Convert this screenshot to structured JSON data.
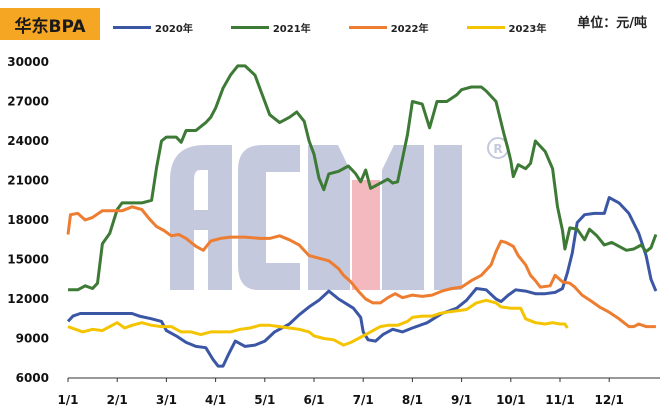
{
  "chart_data": {
    "type": "line",
    "title": "华东BPA",
    "unit": "单位：元/吨",
    "xlabel": "",
    "ylabel": "",
    "x_ticks": [
      "1/1",
      "2/1",
      "3/1",
      "4/1",
      "5/1",
      "6/1",
      "7/1",
      "8/1",
      "9/1",
      "10/1",
      "11/1",
      "12/1"
    ],
    "xlim": [
      1,
      12.95
    ],
    "ylim": [
      6000,
      30000
    ],
    "y_ticks": [
      6000,
      9000,
      12000,
      15000,
      18000,
      21000,
      24000,
      27000,
      30000
    ],
    "grid": false,
    "legend_position": "top",
    "series": [
      {
        "name": "2020年",
        "color": "#3a56a5",
        "points": [
          [
            1.0,
            10300
          ],
          [
            1.1,
            10700
          ],
          [
            1.25,
            10900
          ],
          [
            1.5,
            10900
          ],
          [
            1.8,
            10900
          ],
          [
            2.0,
            10900
          ],
          [
            2.3,
            10900
          ],
          [
            2.45,
            10700
          ],
          [
            2.7,
            10500
          ],
          [
            2.9,
            10300
          ],
          [
            3.0,
            9600
          ],
          [
            3.2,
            9200
          ],
          [
            3.4,
            8700
          ],
          [
            3.6,
            8400
          ],
          [
            3.8,
            8300
          ],
          [
            3.95,
            7400
          ],
          [
            4.05,
            6900
          ],
          [
            4.15,
            6900
          ],
          [
            4.25,
            7700
          ],
          [
            4.4,
            8800
          ],
          [
            4.6,
            8400
          ],
          [
            4.8,
            8500
          ],
          [
            5.0,
            8800
          ],
          [
            5.2,
            9500
          ],
          [
            5.5,
            10100
          ],
          [
            5.7,
            10800
          ],
          [
            5.9,
            11400
          ],
          [
            6.1,
            11900
          ],
          [
            6.3,
            12600
          ],
          [
            6.5,
            12000
          ],
          [
            6.8,
            11300
          ],
          [
            6.95,
            10600
          ],
          [
            7.0,
            9500
          ],
          [
            7.1,
            8900
          ],
          [
            7.25,
            8800
          ],
          [
            7.4,
            9300
          ],
          [
            7.6,
            9700
          ],
          [
            7.8,
            9500
          ],
          [
            8.0,
            9800
          ],
          [
            8.3,
            10200
          ],
          [
            8.6,
            10900
          ],
          [
            8.9,
            11300
          ],
          [
            9.1,
            11900
          ],
          [
            9.3,
            12800
          ],
          [
            9.5,
            12700
          ],
          [
            9.7,
            12000
          ],
          [
            9.8,
            11800
          ],
          [
            9.95,
            12300
          ],
          [
            10.1,
            12700
          ],
          [
            10.3,
            12600
          ],
          [
            10.5,
            12400
          ],
          [
            10.7,
            12400
          ],
          [
            10.9,
            12500
          ],
          [
            11.05,
            12800
          ],
          [
            11.15,
            14000
          ],
          [
            11.25,
            15500
          ],
          [
            11.35,
            17800
          ],
          [
            11.5,
            18400
          ],
          [
            11.7,
            18500
          ],
          [
            11.9,
            18500
          ],
          [
            12.0,
            19700
          ],
          [
            12.2,
            19300
          ],
          [
            12.4,
            18500
          ],
          [
            12.6,
            17000
          ],
          [
            12.75,
            15300
          ],
          [
            12.85,
            13500
          ],
          [
            12.95,
            12600
          ]
        ]
      },
      {
        "name": "2021年",
        "color": "#3d7a35",
        "points": [
          [
            1.0,
            12700
          ],
          [
            1.2,
            12700
          ],
          [
            1.35,
            13000
          ],
          [
            1.5,
            12800
          ],
          [
            1.6,
            13200
          ],
          [
            1.7,
            16200
          ],
          [
            1.85,
            17000
          ],
          [
            2.0,
            18800
          ],
          [
            2.1,
            19300
          ],
          [
            2.3,
            19300
          ],
          [
            2.5,
            19300
          ],
          [
            2.7,
            19500
          ],
          [
            2.8,
            22000
          ],
          [
            2.9,
            24000
          ],
          [
            3.0,
            24300
          ],
          [
            3.2,
            24300
          ],
          [
            3.3,
            23900
          ],
          [
            3.4,
            24800
          ],
          [
            3.6,
            24800
          ],
          [
            3.8,
            25400
          ],
          [
            3.9,
            25800
          ],
          [
            4.0,
            26500
          ],
          [
            4.15,
            28000
          ],
          [
            4.3,
            29000
          ],
          [
            4.45,
            29700
          ],
          [
            4.6,
            29700
          ],
          [
            4.8,
            29000
          ],
          [
            4.95,
            27500
          ],
          [
            5.1,
            26000
          ],
          [
            5.3,
            25400
          ],
          [
            5.5,
            25800
          ],
          [
            5.65,
            26200
          ],
          [
            5.8,
            25500
          ],
          [
            5.9,
            24000
          ],
          [
            6.0,
            23000
          ],
          [
            6.1,
            21200
          ],
          [
            6.2,
            20300
          ],
          [
            6.3,
            21500
          ],
          [
            6.5,
            21700
          ],
          [
            6.7,
            22100
          ],
          [
            6.85,
            21500
          ],
          [
            6.95,
            20900
          ],
          [
            7.05,
            21800
          ],
          [
            7.15,
            20400
          ],
          [
            7.3,
            20700
          ],
          [
            7.5,
            21100
          ],
          [
            7.6,
            20800
          ],
          [
            7.7,
            20900
          ],
          [
            7.8,
            22700
          ],
          [
            7.9,
            24500
          ],
          [
            8.0,
            27000
          ],
          [
            8.2,
            26800
          ],
          [
            8.35,
            25000
          ],
          [
            8.5,
            27000
          ],
          [
            8.7,
            27000
          ],
          [
            8.9,
            27500
          ],
          [
            9.0,
            27900
          ],
          [
            9.2,
            28100
          ],
          [
            9.4,
            28100
          ],
          [
            9.5,
            27800
          ],
          [
            9.7,
            27000
          ],
          [
            9.85,
            24700
          ],
          [
            9.95,
            23300
          ],
          [
            10.0,
            22500
          ],
          [
            10.05,
            21300
          ],
          [
            10.15,
            22200
          ],
          [
            10.3,
            21900
          ],
          [
            10.4,
            22300
          ],
          [
            10.5,
            24000
          ],
          [
            10.7,
            23200
          ],
          [
            10.85,
            21900
          ],
          [
            10.95,
            19000
          ],
          [
            11.05,
            17200
          ],
          [
            11.1,
            15800
          ],
          [
            11.2,
            17400
          ],
          [
            11.35,
            17300
          ],
          [
            11.5,
            16500
          ],
          [
            11.6,
            17300
          ],
          [
            11.75,
            16800
          ],
          [
            11.9,
            16100
          ],
          [
            12.05,
            16300
          ],
          [
            12.2,
            16000
          ],
          [
            12.35,
            15700
          ],
          [
            12.5,
            15800
          ],
          [
            12.65,
            16100
          ],
          [
            12.75,
            15600
          ],
          [
            12.85,
            15900
          ],
          [
            12.95,
            16900
          ]
        ]
      },
      {
        "name": "2022年",
        "color": "#ed7d31",
        "points": [
          [
            1.0,
            16900
          ],
          [
            1.05,
            18400
          ],
          [
            1.2,
            18500
          ],
          [
            1.35,
            18000
          ],
          [
            1.5,
            18200
          ],
          [
            1.7,
            18700
          ],
          [
            1.9,
            18700
          ],
          [
            2.1,
            18700
          ],
          [
            2.3,
            19000
          ],
          [
            2.5,
            18800
          ],
          [
            2.65,
            18100
          ],
          [
            2.8,
            17500
          ],
          [
            2.95,
            17200
          ],
          [
            3.1,
            16800
          ],
          [
            3.25,
            16900
          ],
          [
            3.4,
            16600
          ],
          [
            3.6,
            16000
          ],
          [
            3.75,
            15700
          ],
          [
            3.9,
            16400
          ],
          [
            4.1,
            16600
          ],
          [
            4.3,
            16700
          ],
          [
            4.6,
            16700
          ],
          [
            4.9,
            16600
          ],
          [
            5.1,
            16600
          ],
          [
            5.3,
            16800
          ],
          [
            5.5,
            16500
          ],
          [
            5.7,
            16100
          ],
          [
            5.9,
            15300
          ],
          [
            6.1,
            15100
          ],
          [
            6.3,
            14900
          ],
          [
            6.5,
            14300
          ],
          [
            6.6,
            13800
          ],
          [
            6.75,
            13300
          ],
          [
            6.9,
            12600
          ],
          [
            7.05,
            12000
          ],
          [
            7.2,
            11700
          ],
          [
            7.35,
            11700
          ],
          [
            7.5,
            12100
          ],
          [
            7.65,
            12400
          ],
          [
            7.8,
            12100
          ],
          [
            8.0,
            12300
          ],
          [
            8.2,
            12200
          ],
          [
            8.4,
            12300
          ],
          [
            8.6,
            12600
          ],
          [
            8.8,
            12800
          ],
          [
            9.0,
            12900
          ],
          [
            9.2,
            13400
          ],
          [
            9.4,
            13800
          ],
          [
            9.6,
            14600
          ],
          [
            9.7,
            15600
          ],
          [
            9.8,
            16400
          ],
          [
            9.9,
            16300
          ],
          [
            10.05,
            16000
          ],
          [
            10.15,
            15300
          ],
          [
            10.3,
            14600
          ],
          [
            10.4,
            13800
          ],
          [
            10.5,
            13400
          ],
          [
            10.6,
            12900
          ],
          [
            10.8,
            13000
          ],
          [
            10.9,
            13800
          ],
          [
            11.05,
            13300
          ],
          [
            11.2,
            13200
          ],
          [
            11.3,
            12900
          ],
          [
            11.45,
            12300
          ],
          [
            11.65,
            11800
          ],
          [
            11.8,
            11400
          ],
          [
            12.0,
            11000
          ],
          [
            12.2,
            10500
          ],
          [
            12.4,
            9900
          ],
          [
            12.5,
            9900
          ],
          [
            12.6,
            10100
          ],
          [
            12.75,
            9900
          ],
          [
            12.95,
            9900
          ]
        ]
      },
      {
        "name": "2023年",
        "color": "#f5c400",
        "points": [
          [
            1.0,
            9900
          ],
          [
            1.15,
            9700
          ],
          [
            1.3,
            9500
          ],
          [
            1.5,
            9700
          ],
          [
            1.7,
            9600
          ],
          [
            1.85,
            9900
          ],
          [
            2.0,
            10200
          ],
          [
            2.15,
            9800
          ],
          [
            2.3,
            10000
          ],
          [
            2.5,
            10200
          ],
          [
            2.7,
            10000
          ],
          [
            2.9,
            9900
          ],
          [
            3.1,
            9900
          ],
          [
            3.3,
            9500
          ],
          [
            3.5,
            9500
          ],
          [
            3.7,
            9300
          ],
          [
            3.9,
            9500
          ],
          [
            4.1,
            9500
          ],
          [
            4.3,
            9500
          ],
          [
            4.5,
            9700
          ],
          [
            4.7,
            9800
          ],
          [
            4.9,
            10000
          ],
          [
            5.1,
            10000
          ],
          [
            5.3,
            9900
          ],
          [
            5.5,
            9800
          ],
          [
            5.7,
            9700
          ],
          [
            5.9,
            9500
          ],
          [
            6.0,
            9200
          ],
          [
            6.2,
            9000
          ],
          [
            6.4,
            8900
          ],
          [
            6.5,
            8700
          ],
          [
            6.6,
            8500
          ],
          [
            6.75,
            8700
          ],
          [
            6.9,
            9000
          ],
          [
            7.05,
            9300
          ],
          [
            7.2,
            9600
          ],
          [
            7.35,
            9900
          ],
          [
            7.5,
            10000
          ],
          [
            7.7,
            10000
          ],
          [
            7.9,
            10300
          ],
          [
            8.0,
            10600
          ],
          [
            8.2,
            10700
          ],
          [
            8.4,
            10700
          ],
          [
            8.55,
            10900
          ],
          [
            8.7,
            11000
          ],
          [
            8.9,
            11100
          ],
          [
            9.1,
            11200
          ],
          [
            9.3,
            11700
          ],
          [
            9.5,
            11900
          ],
          [
            9.7,
            11700
          ],
          [
            9.8,
            11400
          ],
          [
            10.0,
            11300
          ],
          [
            10.2,
            11300
          ],
          [
            10.3,
            10500
          ],
          [
            10.5,
            10200
          ],
          [
            10.7,
            10100
          ],
          [
            10.85,
            10200
          ],
          [
            11.0,
            10100
          ],
          [
            11.1,
            10100
          ],
          [
            11.15,
            9800
          ]
        ]
      }
    ]
  }
}
